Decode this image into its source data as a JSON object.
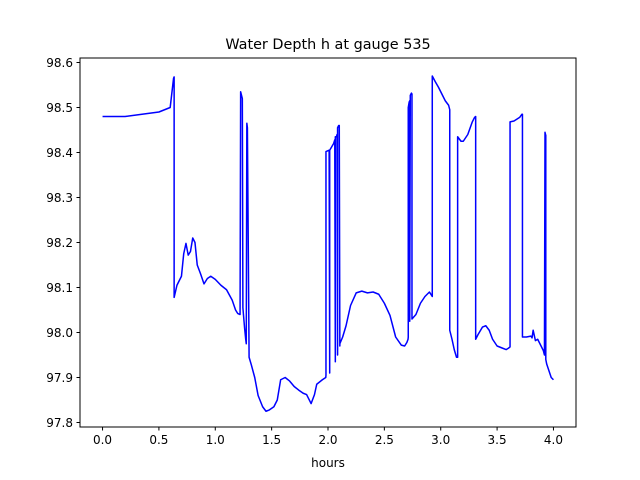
{
  "chart_data": {
    "type": "line",
    "title": "Water Depth h at gauge 535",
    "xlabel": "hours",
    "ylabel": "",
    "xlim": [
      -0.2,
      4.2
    ],
    "ylim": [
      97.79,
      98.61
    ],
    "xticks": [
      "0.0",
      "0.5",
      "1.0",
      "1.5",
      "2.0",
      "2.5",
      "3.0",
      "3.5",
      "4.0"
    ],
    "yticks": [
      "97.8",
      "97.9",
      "98.0",
      "98.1",
      "98.2",
      "98.3",
      "98.4",
      "98.5",
      "98.6"
    ],
    "grid": false,
    "series": [
      {
        "color": "#0000ff",
        "x": [
          0.0,
          0.2,
          0.35,
          0.5,
          0.6,
          0.63,
          0.635,
          0.635,
          0.66,
          0.7,
          0.72,
          0.74,
          0.76,
          0.78,
          0.8,
          0.82,
          0.84,
          0.87,
          0.9,
          0.93,
          0.96,
          1.0,
          1.05,
          1.1,
          1.15,
          1.18,
          1.2,
          1.22,
          1.225,
          1.225,
          1.24,
          1.245,
          1.245,
          1.26,
          1.27,
          1.275,
          1.28,
          1.285,
          1.285,
          1.3,
          1.32,
          1.35,
          1.38,
          1.42,
          1.45,
          1.48,
          1.52,
          1.55,
          1.58,
          1.62,
          1.66,
          1.7,
          1.74,
          1.78,
          1.81,
          1.83,
          1.85,
          1.88,
          1.9,
          1.95,
          1.98,
          1.982,
          1.982,
          2.0,
          2.01,
          2.015,
          2.015,
          2.05,
          2.06,
          2.065,
          2.065,
          2.075,
          2.08,
          2.085,
          2.085,
          2.095,
          2.1,
          2.105,
          2.105,
          2.13,
          2.16,
          2.2,
          2.25,
          2.3,
          2.35,
          2.4,
          2.45,
          2.5,
          2.55,
          2.6,
          2.65,
          2.68,
          2.7,
          2.71,
          2.712,
          2.712,
          2.72,
          2.725,
          2.725,
          2.73,
          2.74,
          2.745,
          2.745,
          2.78,
          2.82,
          2.86,
          2.9,
          2.92,
          2.925,
          2.925,
          2.95,
          2.98,
          3.0,
          3.04,
          3.07,
          3.08,
          3.08,
          3.1,
          3.12,
          3.14,
          3.15,
          3.15,
          3.18,
          3.2,
          3.24,
          3.28,
          3.3,
          3.31,
          3.31,
          3.33,
          3.37,
          3.4,
          3.43,
          3.46,
          3.5,
          3.55,
          3.58,
          3.6,
          3.615,
          3.615,
          3.65,
          3.7,
          3.72,
          3.725,
          3.725,
          3.76,
          3.8,
          3.81,
          3.82,
          3.84,
          3.86,
          3.88,
          3.9,
          3.91,
          3.92,
          3.925,
          3.925,
          3.93,
          3.932,
          3.932,
          3.94,
          3.96,
          3.98,
          4.0
        ],
        "values": [
          98.48,
          98.48,
          98.485,
          98.49,
          98.5,
          98.565,
          98.568,
          98.078,
          98.105,
          98.125,
          98.175,
          98.198,
          98.172,
          98.18,
          98.21,
          98.2,
          98.15,
          98.13,
          98.108,
          98.12,
          98.125,
          98.118,
          98.105,
          98.095,
          98.072,
          98.05,
          98.042,
          98.04,
          98.535,
          98.535,
          98.52,
          98.055,
          98.055,
          98.01,
          97.985,
          97.975,
          98.465,
          98.455,
          98.455,
          97.945,
          97.928,
          97.9,
          97.86,
          97.835,
          97.825,
          97.828,
          97.835,
          97.85,
          97.895,
          97.9,
          97.892,
          97.88,
          97.872,
          97.865,
          97.862,
          97.852,
          97.842,
          97.862,
          97.885,
          97.895,
          97.9,
          97.905,
          98.402,
          98.404,
          98.405,
          97.91,
          98.405,
          98.42,
          98.428,
          97.935,
          98.435,
          98.435,
          98.44,
          97.95,
          98.455,
          98.46,
          98.46,
          97.97,
          97.975,
          97.99,
          98.015,
          98.06,
          98.088,
          98.092,
          98.088,
          98.09,
          98.085,
          98.065,
          98.038,
          97.99,
          97.972,
          97.97,
          97.978,
          97.985,
          97.99,
          98.5,
          98.512,
          98.515,
          98.025,
          98.527,
          98.532,
          98.53,
          98.03,
          98.04,
          98.065,
          98.08,
          98.09,
          98.082,
          98.08,
          98.57,
          98.558,
          98.545,
          98.535,
          98.515,
          98.505,
          98.495,
          98.005,
          97.985,
          97.962,
          97.945,
          97.945,
          98.435,
          98.425,
          98.425,
          98.44,
          98.468,
          98.478,
          98.48,
          97.985,
          97.995,
          98.012,
          98.015,
          98.005,
          97.985,
          97.97,
          97.965,
          97.962,
          97.965,
          97.968,
          98.468,
          98.47,
          98.478,
          98.485,
          98.485,
          97.99,
          97.99,
          97.992,
          97.988,
          98.005,
          97.982,
          97.985,
          97.975,
          97.965,
          97.96,
          97.95,
          98.445,
          98.445,
          98.44,
          98.438,
          97.94,
          97.93,
          97.915,
          97.9,
          97.895
        ]
      }
    ]
  }
}
